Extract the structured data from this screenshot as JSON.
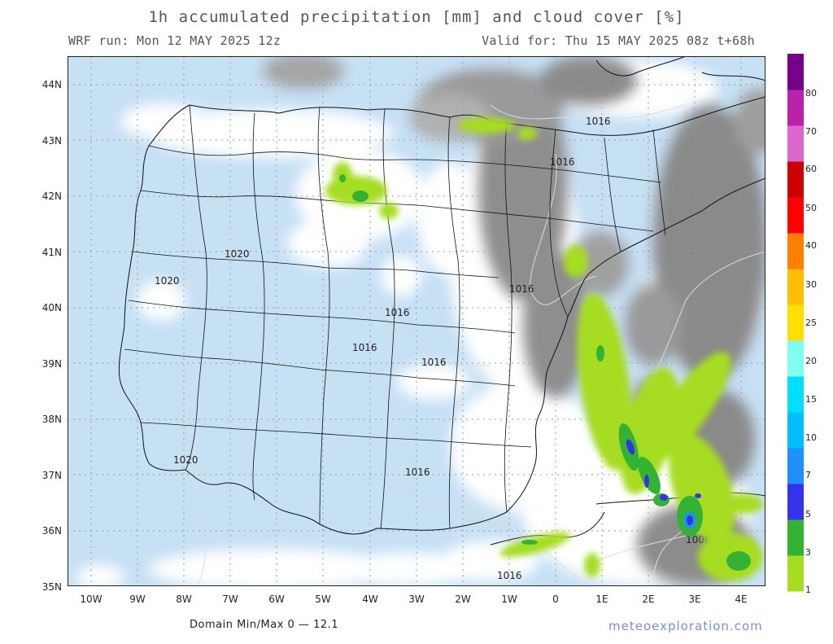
{
  "header": {
    "title": "1h accumulated precipitation [mm] and cloud cover [%]",
    "run": "WRF run: Mon 12 MAY 2025 12z",
    "valid": "Valid for: Thu 15 MAY 2025 08z  t+68h"
  },
  "map": {
    "lat_labels": [
      "44N",
      "43N",
      "42N",
      "41N",
      "40N",
      "39N",
      "38N",
      "37N",
      "36N",
      "35N"
    ],
    "lon_labels": [
      "10W",
      "9W",
      "8W",
      "7W",
      "6W",
      "5W",
      "4W",
      "3W",
      "2W",
      "1W",
      "0",
      "1E",
      "2E",
      "3E",
      "4E"
    ],
    "isobar_labels": [
      "1016",
      "1016",
      "1020",
      "1020",
      "1016",
      "1016",
      "1016",
      "1016",
      "1020",
      "1016",
      "1008",
      "1016"
    ],
    "colors": {
      "sea": "#c6e0f4",
      "land": "#c6e0f4",
      "cloud_light": "#ffffff",
      "cloud_dark": "#8c8c8c",
      "border": "#111111"
    }
  },
  "legend": {
    "levels": [
      "1",
      "3",
      "5",
      "7",
      "10",
      "15",
      "20",
      "25",
      "30",
      "40",
      "50",
      "60",
      "70",
      "80"
    ],
    "colors": [
      "#a6dd22",
      "#33b233",
      "#3333ee",
      "#1e90ff",
      "#00bfff",
      "#00dfff",
      "#7ffff0",
      "#ffdf00",
      "#ffbf00",
      "#ff7f00",
      "#ff0000",
      "#cc0000",
      "#dd66cc",
      "#bb22aa",
      "#770088"
    ]
  },
  "footer": {
    "minmax": "Domain Min/Max 0 — 12.1",
    "brand": "meteoexploration.com"
  }
}
